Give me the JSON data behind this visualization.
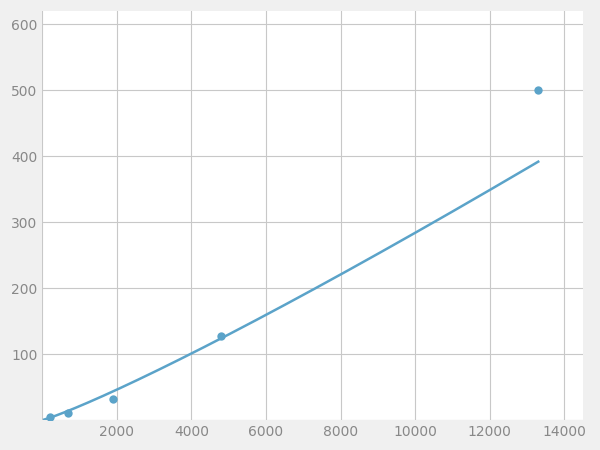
{
  "x_data": [
    200,
    700,
    1900,
    4800,
    13300
  ],
  "y_data": [
    5,
    10,
    32,
    128,
    500
  ],
  "line_color": "#5ba3c9",
  "marker_color": "#5ba3c9",
  "marker_size": 6,
  "line_width": 1.8,
  "xlim": [
    0,
    14500
  ],
  "ylim": [
    0,
    620
  ],
  "xticks": [
    0,
    2000,
    4000,
    6000,
    8000,
    10000,
    12000,
    14000
  ],
  "yticks": [
    0,
    100,
    200,
    300,
    400,
    500,
    600
  ],
  "grid_color": "#c8c8c8",
  "background_color": "#ffffff",
  "figure_background": "#f0f0f0",
  "tick_label_color": "#888888",
  "tick_label_size": 10
}
